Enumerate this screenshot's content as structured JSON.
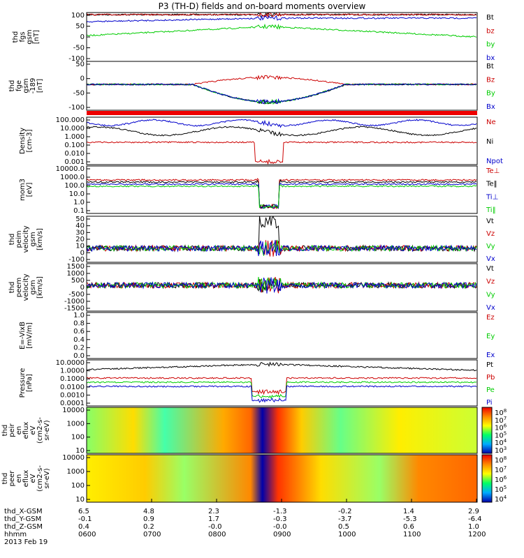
{
  "title": "P3 (TH-D) fields and on-board moments overview",
  "chart_data": [
    {
      "type": "line",
      "ylabel": [
        "thd",
        "fgs",
        "gsm",
        "[nT]"
      ],
      "yticks": [
        "100",
        "50",
        "0",
        "-50",
        "-100"
      ],
      "ylim": [
        -100,
        100
      ],
      "series": [
        {
          "name": "Bt",
          "color": "#000000"
        },
        {
          "name": "bz",
          "color": "#cc0000"
        },
        {
          "name": "by",
          "color": "#00cc00"
        },
        {
          "name": "bx",
          "color": "#0000cc"
        }
      ]
    },
    {
      "type": "line",
      "ylabel": [
        "thd",
        "fge",
        "gsm",
        "-189",
        "[nT]"
      ],
      "yticks": [
        "50",
        "0",
        "-50",
        "-100"
      ],
      "ylim": [
        -130,
        70
      ],
      "series": [
        {
          "name": "Bt",
          "color": "#000000"
        },
        {
          "name": "Bz",
          "color": "#cc0000"
        },
        {
          "name": "By",
          "color": "#00cc00"
        },
        {
          "name": "Bx",
          "color": "#0000cc"
        }
      ]
    },
    {
      "type": "line",
      "ylabel": [
        "Density",
        "[cm-3]"
      ],
      "yticks": [
        "100.000",
        "10.000",
        "1.000",
        "0.100",
        "0.010",
        "0.001"
      ],
      "scale": "log",
      "series": [
        {
          "name": "Ne",
          "color": "#cc0000"
        },
        {
          "name": "Ni",
          "color": "#000000"
        },
        {
          "name": "Npot",
          "color": "#0000cc"
        }
      ]
    },
    {
      "type": "line",
      "ylabel": [
        "mom3",
        "[eV]"
      ],
      "yticks": [
        "10000.0",
        "1000.0",
        "100.0",
        "10.0",
        "1.0",
        "0.1"
      ],
      "scale": "log",
      "series": [
        {
          "name": "Te⊥",
          "color": "#cc0000"
        },
        {
          "name": "Te‖",
          "color": "#000000"
        },
        {
          "name": "Ti⊥",
          "color": "#0000cc"
        },
        {
          "name": "Ti‖",
          "color": "#00cc00"
        }
      ]
    },
    {
      "type": "line",
      "ylabel": [
        "thd",
        "peim",
        "velocity",
        "gsm",
        "[km/s]"
      ],
      "yticks": [
        "50",
        "40",
        "30",
        "20",
        "10",
        "0",
        "-100"
      ],
      "series": [
        {
          "name": "Vt",
          "color": "#000000"
        },
        {
          "name": "Vz",
          "color": "#cc0000"
        },
        {
          "name": "Vy",
          "color": "#00cc00"
        },
        {
          "name": "Vx",
          "color": "#0000cc"
        }
      ]
    },
    {
      "type": "line",
      "ylabel": [
        "thd",
        "peem",
        "velocity",
        "gsm",
        "[km/s]"
      ],
      "yticks": [
        "1500",
        "1000",
        "500",
        "0",
        "-500",
        "-1000",
        "-1500"
      ],
      "ylim": [
        -1500,
        1500
      ],
      "series": [
        {
          "name": "Vt",
          "color": "#000000"
        },
        {
          "name": "Vz",
          "color": "#cc0000"
        },
        {
          "name": "Vy",
          "color": "#00cc00"
        },
        {
          "name": "Vx",
          "color": "#0000cc"
        }
      ]
    },
    {
      "type": "line",
      "ylabel": [
        "E=-VixB",
        "[mV/m]"
      ],
      "yticks": [
        "1.0",
        "0.8",
        "0.6",
        "0.4",
        "0.2",
        "0.0"
      ],
      "ylim": [
        0,
        1
      ],
      "series": [
        {
          "name": "Ez",
          "color": "#cc0000"
        },
        {
          "name": "Ey",
          "color": "#00cc00"
        },
        {
          "name": "Ex",
          "color": "#0000cc"
        }
      ]
    },
    {
      "type": "line",
      "ylabel": [
        "Pressure",
        "[nPa]"
      ],
      "yticks": [
        "10.0000",
        "1.0000",
        "0.1000",
        "0.0100",
        "0.0010",
        "0.0001"
      ],
      "scale": "log",
      "series": [
        {
          "name": "Pt",
          "color": "#000000"
        },
        {
          "name": "Pb",
          "color": "#cc0000"
        },
        {
          "name": "Pe",
          "color": "#00cc00"
        },
        {
          "name": "Pi",
          "color": "#0000cc"
        }
      ]
    },
    {
      "type": "heatmap",
      "ylabel": [
        "thd",
        "peir",
        "en",
        "eflux",
        "eV",
        "(cm2-s-",
        "sr-eV)"
      ],
      "yticks": [
        "10000",
        "1000",
        "100",
        "10"
      ],
      "colorbar": [
        "10^8",
        "10^7",
        "10^6",
        "10^5",
        "10^4",
        "10^3"
      ]
    },
    {
      "type": "heatmap",
      "ylabel": [
        "thd",
        "peer",
        "en",
        "eflux",
        "eV",
        "(cm2-s-",
        "sr-eV)"
      ],
      "yticks": [
        "10000",
        "1000",
        "100",
        "10"
      ],
      "colorbar": [
        "10^8",
        "10^7",
        "10^6",
        "10^5",
        "10^4"
      ]
    }
  ],
  "xaxis": {
    "rows": [
      {
        "label": "thd_X-GSM",
        "values": [
          "6.5",
          "4.8",
          "2.3",
          "-1.3",
          "-0.2",
          "1.4",
          "2.9"
        ]
      },
      {
        "label": "thd_Y-GSM",
        "values": [
          "-0.1",
          "0.9",
          "1.7",
          "-0.3",
          "-3.7",
          "-5.3",
          "-6.4"
        ]
      },
      {
        "label": "thd_Z-GSM",
        "values": [
          "0.4",
          "0.2",
          "-0.0",
          "-0.0",
          "0.5",
          "0.6",
          "1.0"
        ]
      },
      {
        "label": "hhmm",
        "values": [
          "0600",
          "0700",
          "0800",
          "0900",
          "1000",
          "1100",
          "1200"
        ]
      }
    ],
    "date": "2013 Feb 19"
  }
}
